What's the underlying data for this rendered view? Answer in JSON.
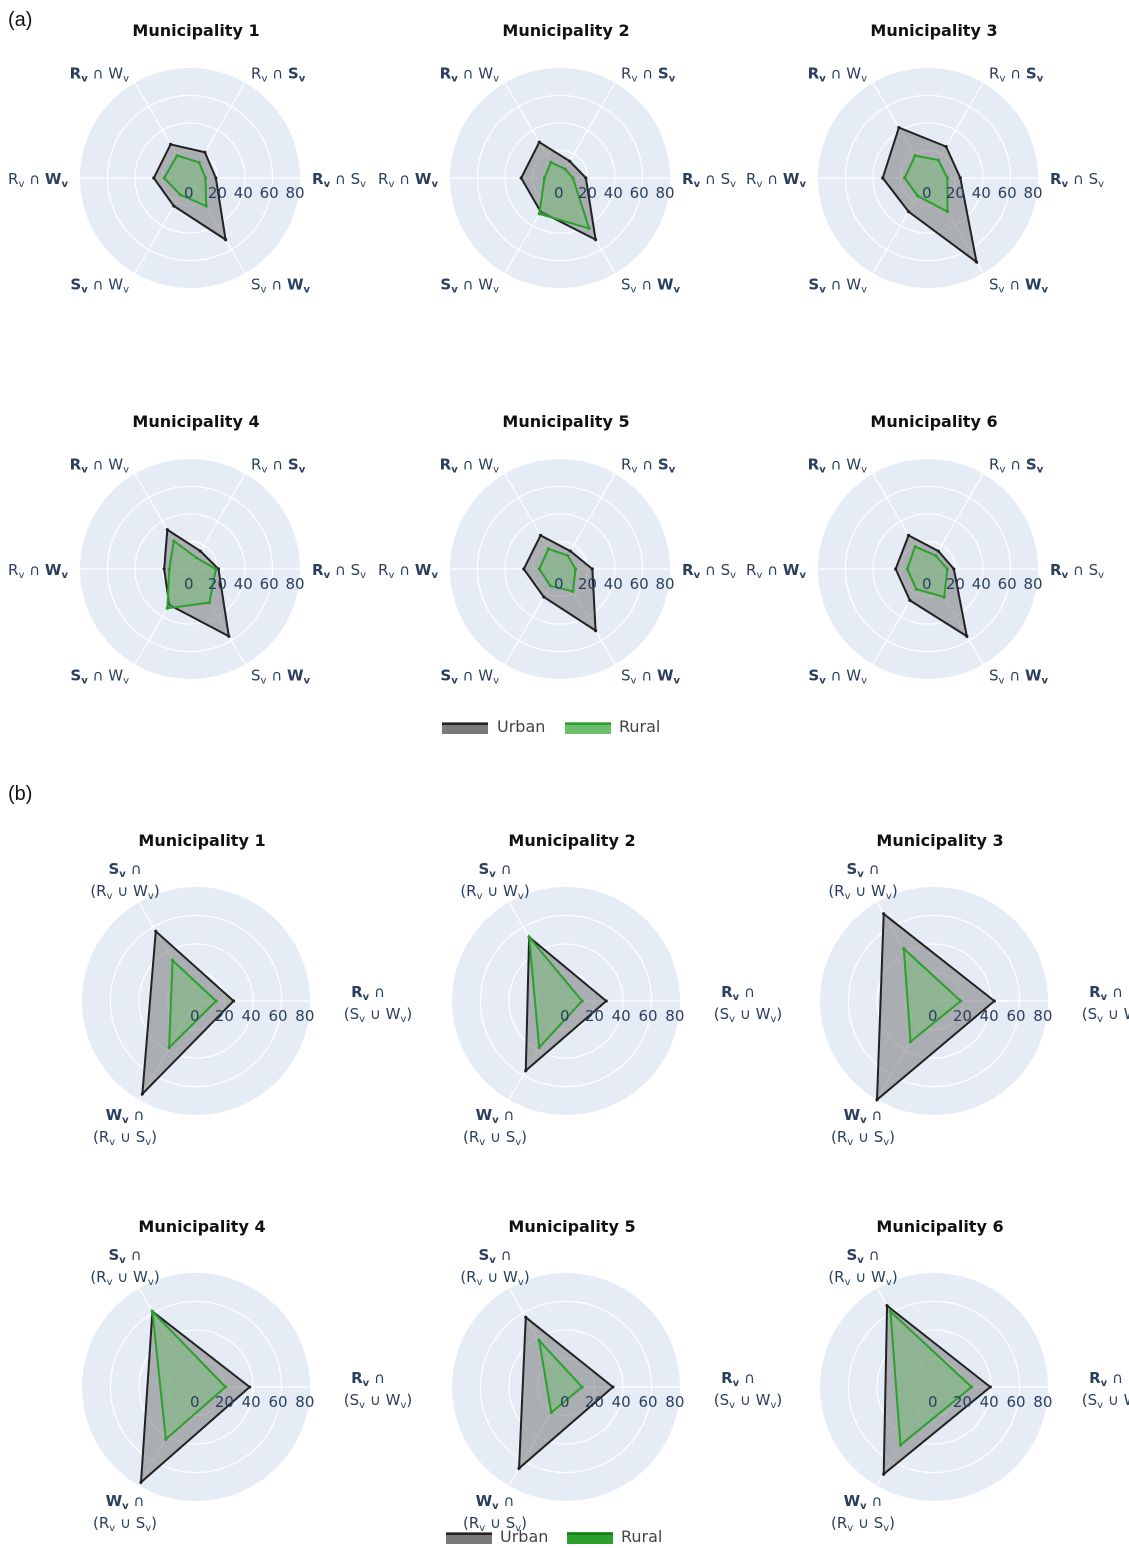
{
  "panels": [
    {
      "label": "(a)"
    },
    {
      "label": "(b)"
    }
  ],
  "legend": {
    "urban": "Urban",
    "rural": "Rural"
  },
  "colors": {
    "polar_bg": "#e5ecf6",
    "grid": "#ffffff",
    "urban_line": "#222222",
    "urban_fill": "#7a7a7a",
    "rural_line": "#2ca02c",
    "rural_fill": "#6dbd6d",
    "axis_text": "#2a3f5f"
  },
  "chart_data": [
    {
      "type": "radar",
      "panel": "(a)",
      "radial_ticks": [
        "0",
        "20",
        "40",
        "60",
        "80"
      ],
      "rlim": [
        0,
        85
      ],
      "axes": [
        {
          "bold": "R",
          "parts": [
            [
              "R",
              true
            ],
            [
              "v",
              true,
              "sub"
            ],
            [
              " ∩ ",
              false
            ],
            [
              "S",
              false
            ],
            [
              "v",
              false,
              "sub"
            ]
          ],
          "angle": 0
        },
        {
          "parts": [
            [
              "R",
              false
            ],
            [
              "v",
              false,
              "sub"
            ],
            [
              " ∩ ",
              false
            ],
            [
              "S",
              true
            ],
            [
              "v",
              true,
              "sub"
            ]
          ],
          "angle": 60
        },
        {
          "parts": [
            [
              "R",
              true
            ],
            [
              "v",
              true,
              "sub"
            ],
            [
              " ∩ ",
              false
            ],
            [
              "W",
              false
            ],
            [
              "v",
              false,
              "sub"
            ]
          ],
          "angle": 120
        },
        {
          "parts": [
            [
              "R",
              false
            ],
            [
              "v",
              false,
              "sub"
            ],
            [
              " ∩ ",
              false
            ],
            [
              "W",
              true
            ],
            [
              "v",
              true,
              "sub"
            ]
          ],
          "angle": 180
        },
        {
          "parts": [
            [
              "S",
              true
            ],
            [
              "v",
              true,
              "sub"
            ],
            [
              " ∩ ",
              false
            ],
            [
              "W",
              false
            ],
            [
              "v",
              false,
              "sub"
            ]
          ],
          "angle": 240
        },
        {
          "parts": [
            [
              "S",
              false
            ],
            [
              "v",
              false,
              "sub"
            ],
            [
              " ∩ ",
              false
            ],
            [
              "W",
              true
            ],
            [
              "v",
              true,
              "sub"
            ]
          ],
          "angle": 300
        }
      ],
      "charts": [
        {
          "title": "Municipality 1",
          "series": [
            {
              "name": "Urban",
              "values": [
                20,
                23,
                30,
                28,
                25,
                55
              ]
            },
            {
              "name": "Rural",
              "values": [
                12,
                14,
                20,
                20,
                15,
                25
              ]
            }
          ]
        },
        {
          "title": "Municipality 2",
          "series": [
            {
              "name": "Urban",
              "values": [
                20,
                15,
                32,
                30,
                30,
                55
              ]
            },
            {
              "name": "Rural",
              "values": [
                10,
                8,
                14,
                12,
                32,
                45
              ]
            }
          ]
        },
        {
          "title": "Municipality 3",
          "series": [
            {
              "name": "Urban",
              "values": [
                25,
                28,
                45,
                35,
                30,
                75
              ]
            },
            {
              "name": "Rural",
              "values": [
                15,
                16,
                20,
                18,
                16,
                30
              ]
            }
          ]
        },
        {
          "title": "Municipality 4",
          "series": [
            {
              "name": "Urban",
              "values": [
                22,
                16,
                35,
                20,
                32,
                60
              ]
            },
            {
              "name": "Rural",
              "values": [
                20,
                10,
                25,
                16,
                35,
                30
              ]
            }
          ]
        },
        {
          "title": "Municipality 5",
          "series": [
            {
              "name": "Urban",
              "values": [
                25,
                16,
                30,
                28,
                25,
                55
              ]
            },
            {
              "name": "Rural",
              "values": [
                12,
                12,
                18,
                16,
                15,
                20
              ]
            }
          ]
        },
        {
          "title": "Municipality 6",
          "series": [
            {
              "name": "Urban",
              "values": [
                20,
                16,
                30,
                25,
                28,
                60
              ]
            },
            {
              "name": "Rural",
              "values": [
                15,
                12,
                20,
                16,
                18,
                25
              ]
            }
          ]
        }
      ]
    },
    {
      "type": "radar",
      "panel": "(b)",
      "radial_ticks": [
        "0",
        "20",
        "40",
        "60",
        "80"
      ],
      "rlim": [
        0,
        85
      ],
      "axes": [
        {
          "line1": [
            [
              "R",
              true
            ],
            [
              "v",
              true,
              "sub"
            ],
            [
              " ∩",
              false
            ]
          ],
          "line2": [
            [
              "(S",
              false
            ],
            [
              "v",
              false,
              "sub"
            ],
            [
              " ∪ W",
              false
            ],
            [
              "v",
              false,
              "sub"
            ],
            [
              ")",
              false
            ]
          ],
          "angle": 0
        },
        {
          "line1": [
            [
              "S",
              true
            ],
            [
              "v",
              true,
              "sub"
            ],
            [
              " ∩",
              false
            ]
          ],
          "line2": [
            [
              "(R",
              false
            ],
            [
              "v",
              false,
              "sub"
            ],
            [
              " ∪ W",
              false
            ],
            [
              "v",
              false,
              "sub"
            ],
            [
              ")",
              false
            ]
          ],
          "angle": 120
        },
        {
          "line1": [
            [
              "W",
              true
            ],
            [
              "v",
              true,
              "sub"
            ],
            [
              " ∩",
              false
            ]
          ],
          "line2": [
            [
              "(R",
              false
            ],
            [
              "v",
              false,
              "sub"
            ],
            [
              " ∪ S",
              false
            ],
            [
              "v",
              false,
              "sub"
            ],
            [
              ")",
              false
            ]
          ],
          "angle": 240
        }
      ],
      "charts": [
        {
          "title": "Municipality 1",
          "series": [
            {
              "name": "Urban",
              "values": [
                28,
                60,
                80
              ]
            },
            {
              "name": "Rural",
              "values": [
                15,
                35,
                40
              ]
            }
          ]
        },
        {
          "title": "Municipality 2",
          "series": [
            {
              "name": "Urban",
              "values": [
                30,
                55,
                60
              ]
            },
            {
              "name": "Rural",
              "values": [
                12,
                55,
                40
              ]
            }
          ]
        },
        {
          "title": "Municipality 3",
          "series": [
            {
              "name": "Urban",
              "values": [
                45,
                75,
                85
              ]
            },
            {
              "name": "Rural",
              "values": [
                20,
                45,
                35
              ]
            }
          ]
        },
        {
          "title": "Municipality 4",
          "series": [
            {
              "name": "Urban",
              "values": [
                40,
                65,
                82
              ]
            },
            {
              "name": "Rural",
              "values": [
                22,
                65,
                45
              ]
            }
          ]
        },
        {
          "title": "Municipality 5",
          "series": [
            {
              "name": "Urban",
              "values": [
                35,
                60,
                70
              ]
            },
            {
              "name": "Rural",
              "values": [
                12,
                40,
                22
              ]
            }
          ]
        },
        {
          "title": "Municipality 6",
          "series": [
            {
              "name": "Urban",
              "values": [
                42,
                70,
                75
              ]
            },
            {
              "name": "Rural",
              "values": [
                28,
                65,
                50
              ]
            }
          ]
        }
      ]
    }
  ]
}
